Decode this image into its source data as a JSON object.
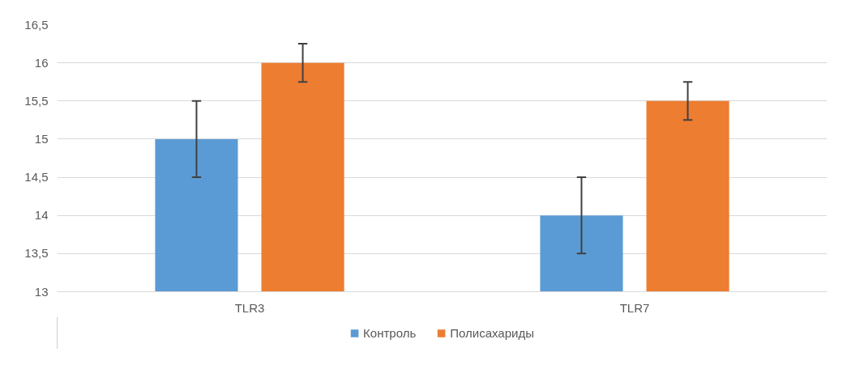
{
  "chart_data": {
    "type": "bar",
    "categories": [
      "TLR3",
      "TLR7"
    ],
    "series": [
      {
        "name": "Контроль",
        "color": "#5b9bd5",
        "values": [
          15,
          14
        ],
        "errors": [
          0.5,
          0.5
        ]
      },
      {
        "name": "Полисахариды",
        "color": "#ed7d31",
        "values": [
          16,
          15.5
        ],
        "errors": [
          0.25,
          0.25
        ]
      }
    ],
    "ylim": [
      13,
      16.5
    ],
    "yticks": [
      13,
      {
        "value": 13.5,
        "label": "13,5"
      },
      14,
      {
        "value": 14.5,
        "label": "14,5"
      },
      15,
      {
        "value": 15.5,
        "label": "15,5"
      },
      16,
      {
        "value": 16.5,
        "label": "16,5"
      }
    ],
    "grid": "y",
    "legend": "bottom"
  }
}
